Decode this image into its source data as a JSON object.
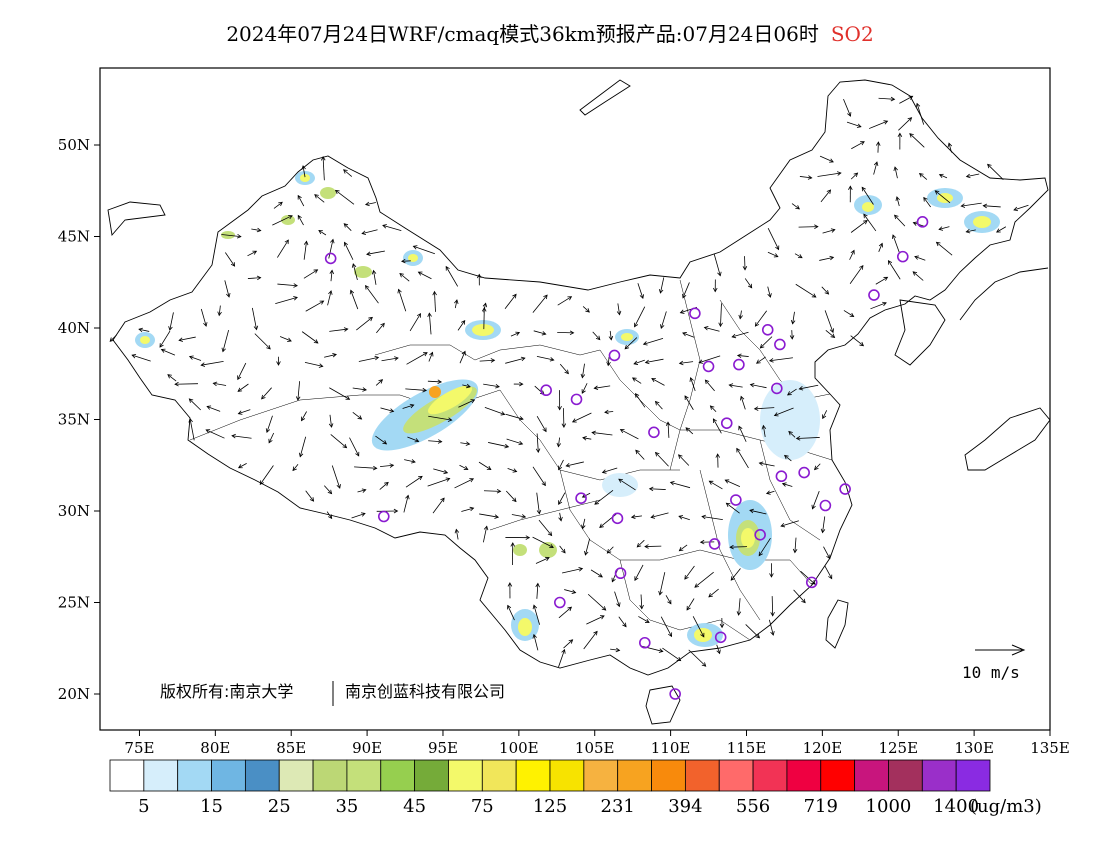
{
  "header": {
    "title": "2024年07月24日WRF/cmaq模式36km预报产品:07月24日06时",
    "pollutant": "SO2"
  },
  "axes": {
    "lon_ticks": [
      "75E",
      "80E",
      "85E",
      "90E",
      "95E",
      "100E",
      "105E",
      "110E",
      "115E",
      "120E",
      "125E",
      "130E",
      "135E"
    ],
    "lat_ticks": [
      "20N",
      "25N",
      "30N",
      "35N",
      "40N",
      "45N",
      "50N"
    ]
  },
  "copyright": {
    "holder": "版权所有:南京大学",
    "company": "南京创蓝科技有限公司"
  },
  "wind_scale": {
    "label": "10 m/s"
  },
  "colorbar": {
    "labels": [
      "5",
      "15",
      "25",
      "35",
      "45",
      "75",
      "125",
      "231",
      "394",
      "556",
      "719",
      "1000",
      "1400"
    ],
    "unit": "(ug/m3)",
    "colors": [
      "#ffffff",
      "#d6eefb",
      "#a3d9f4",
      "#6fb6e3",
      "#4a8fc5",
      "#dde9b5",
      "#bcd775",
      "#c4e07a",
      "#96cf4f",
      "#75ab39",
      "#f3f96a",
      "#f1e65a",
      "#fff200",
      "#f7e300",
      "#f6b240",
      "#f7a320",
      "#f88a0c",
      "#f2622c",
      "#ff6a6a",
      "#f23355",
      "#ef0041",
      "#ff0000",
      "#c8157d",
      "#a3305d",
      "#9a2fc9",
      "#8a2be2"
    ]
  },
  "map": {
    "background": "#ffffff",
    "station_color": "#8a1bd0",
    "stations": [
      {
        "lon": 87.6,
        "lat": 43.8
      },
      {
        "lon": 91.1,
        "lat": 29.7
      },
      {
        "lon": 101.8,
        "lat": 36.6
      },
      {
        "lon": 103.8,
        "lat": 36.1
      },
      {
        "lon": 106.3,
        "lat": 38.5
      },
      {
        "lon": 111.6,
        "lat": 40.8
      },
      {
        "lon": 112.5,
        "lat": 37.9
      },
      {
        "lon": 114.5,
        "lat": 38.0
      },
      {
        "lon": 116.4,
        "lat": 39.9
      },
      {
        "lon": 117.2,
        "lat": 39.1
      },
      {
        "lon": 117.0,
        "lat": 36.7
      },
      {
        "lon": 113.7,
        "lat": 34.8
      },
      {
        "lon": 108.9,
        "lat": 34.3
      },
      {
        "lon": 104.1,
        "lat": 30.7
      },
      {
        "lon": 106.5,
        "lat": 29.6
      },
      {
        "lon": 106.7,
        "lat": 26.6
      },
      {
        "lon": 102.7,
        "lat": 25.0
      },
      {
        "lon": 108.3,
        "lat": 22.8
      },
      {
        "lon": 113.3,
        "lat": 23.1
      },
      {
        "lon": 110.3,
        "lat": 20.0
      },
      {
        "lon": 112.9,
        "lat": 28.2
      },
      {
        "lon": 114.3,
        "lat": 30.6
      },
      {
        "lon": 115.9,
        "lat": 28.7
      },
      {
        "lon": 117.3,
        "lat": 31.9
      },
      {
        "lon": 118.8,
        "lat": 32.1
      },
      {
        "lon": 120.2,
        "lat": 30.3
      },
      {
        "lon": 121.5,
        "lat": 31.2
      },
      {
        "lon": 119.3,
        "lat": 26.1
      },
      {
        "lon": 123.4,
        "lat": 41.8
      },
      {
        "lon": 125.3,
        "lat": 43.9
      },
      {
        "lon": 126.6,
        "lat": 45.8
      }
    ]
  }
}
